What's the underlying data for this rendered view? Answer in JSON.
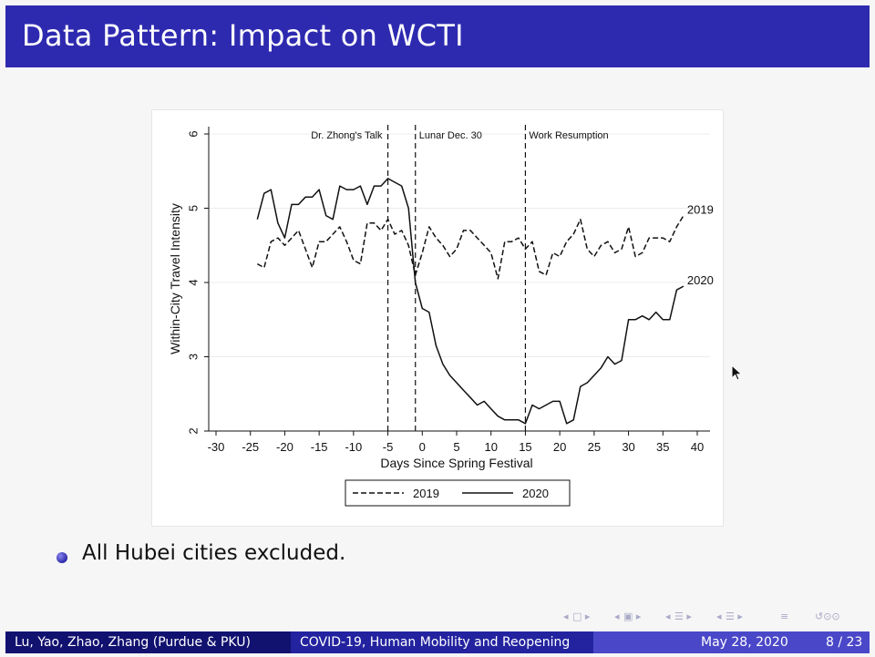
{
  "slide": {
    "title": "Data Pattern: Impact on WCTI",
    "bullet": "All Hubei cities excluded.",
    "footer": {
      "authors": "Lu, Yao, Zhao, Zhang (Purdue & PKU)",
      "talk_title": "COVID-19, Human Mobility and Reopening",
      "date": "May 28, 2020",
      "page": "8 / 23"
    },
    "colors": {
      "title_bar": "#2e2ab0",
      "footer_left": "#111170",
      "footer_mid": "#2323a0",
      "footer_right": "#4a48c8"
    },
    "nav_icons": [
      "frame-back-icon",
      "frame-forward-icon",
      "subsection-back-icon",
      "subsection-forward-icon",
      "section-back-icon",
      "section-forward-icon",
      "slide-back-icon",
      "slide-forward-icon",
      "align-icon",
      "search-icon"
    ]
  },
  "chart_data": {
    "type": "line",
    "xlabel": "Days Since Spring Festival",
    "ylabel": "Within-City Travel Intensity",
    "xlim": [
      -30,
      40
    ],
    "ylim": [
      2,
      6
    ],
    "xticks": [
      -30,
      -25,
      -20,
      -15,
      -10,
      -5,
      0,
      5,
      10,
      15,
      20,
      25,
      30,
      35,
      40
    ],
    "yticks": [
      2,
      3,
      4,
      5,
      6
    ],
    "grid": "horizontal",
    "legend_position": "bottom",
    "events": [
      {
        "x": -5,
        "label": "Dr. Zhong's Talk"
      },
      {
        "x": -1,
        "label": "Lunar Dec. 30"
      },
      {
        "x": 15,
        "label": "Work Resumption"
      }
    ],
    "series": [
      {
        "name": "2019",
        "style": "dashed",
        "end_label": "2019",
        "x": [
          -24,
          -23,
          -22,
          -21,
          -20,
          -19,
          -18,
          -17,
          -16,
          -15,
          -14,
          -13,
          -12,
          -11,
          -10,
          -9,
          -8,
          -7,
          -6,
          -5,
          -4,
          -3,
          -2,
          -1,
          0,
          1,
          2,
          3,
          4,
          5,
          6,
          7,
          8,
          9,
          10,
          11,
          12,
          13,
          14,
          15,
          16,
          17,
          18,
          19,
          20,
          21,
          22,
          23,
          24,
          25,
          26,
          27,
          28,
          29,
          30,
          31,
          32,
          33,
          34,
          35,
          36,
          37,
          38
        ],
        "values": [
          4.25,
          4.2,
          4.55,
          4.6,
          4.5,
          4.6,
          4.7,
          4.45,
          4.2,
          4.55,
          4.55,
          4.65,
          4.75,
          4.55,
          4.3,
          4.25,
          4.8,
          4.8,
          4.7,
          4.85,
          4.65,
          4.7,
          4.5,
          4.1,
          4.4,
          4.75,
          4.6,
          4.5,
          4.35,
          4.45,
          4.7,
          4.7,
          4.6,
          4.5,
          4.4,
          4.05,
          4.55,
          4.55,
          4.6,
          4.45,
          4.55,
          4.15,
          4.1,
          4.4,
          4.35,
          4.55,
          4.65,
          4.85,
          4.45,
          4.35,
          4.5,
          4.55,
          4.4,
          4.45,
          4.75,
          4.35,
          4.4,
          4.6,
          4.6,
          4.6,
          4.55,
          4.75,
          4.9
        ]
      },
      {
        "name": "2020",
        "style": "solid",
        "end_label": "2020",
        "x": [
          -24,
          -23,
          -22,
          -21,
          -20,
          -19,
          -18,
          -17,
          -16,
          -15,
          -14,
          -13,
          -12,
          -11,
          -10,
          -9,
          -8,
          -7,
          -6,
          -5,
          -4,
          -3,
          -2,
          -1,
          0,
          1,
          2,
          3,
          4,
          5,
          6,
          7,
          8,
          9,
          10,
          11,
          12,
          13,
          14,
          15,
          16,
          17,
          18,
          19,
          20,
          21,
          22,
          23,
          24,
          25,
          26,
          27,
          28,
          29,
          30,
          31,
          32,
          33,
          34,
          35,
          36,
          37,
          38
        ],
        "values": [
          4.85,
          5.2,
          5.25,
          4.8,
          4.6,
          5.05,
          5.05,
          5.15,
          5.15,
          5.25,
          4.9,
          4.85,
          5.3,
          5.25,
          5.25,
          5.3,
          5.05,
          5.3,
          5.3,
          5.4,
          5.35,
          5.3,
          5.0,
          4.0,
          3.65,
          3.6,
          3.15,
          2.9,
          2.75,
          2.65,
          2.55,
          2.45,
          2.35,
          2.4,
          2.3,
          2.2,
          2.15,
          2.15,
          2.15,
          2.1,
          2.35,
          2.3,
          2.35,
          2.4,
          2.4,
          2.1,
          2.15,
          2.6,
          2.65,
          2.75,
          2.85,
          3.0,
          2.9,
          2.95,
          3.5,
          3.5,
          3.55,
          3.5,
          3.6,
          3.5,
          3.5,
          3.9,
          3.95
        ]
      }
    ]
  }
}
